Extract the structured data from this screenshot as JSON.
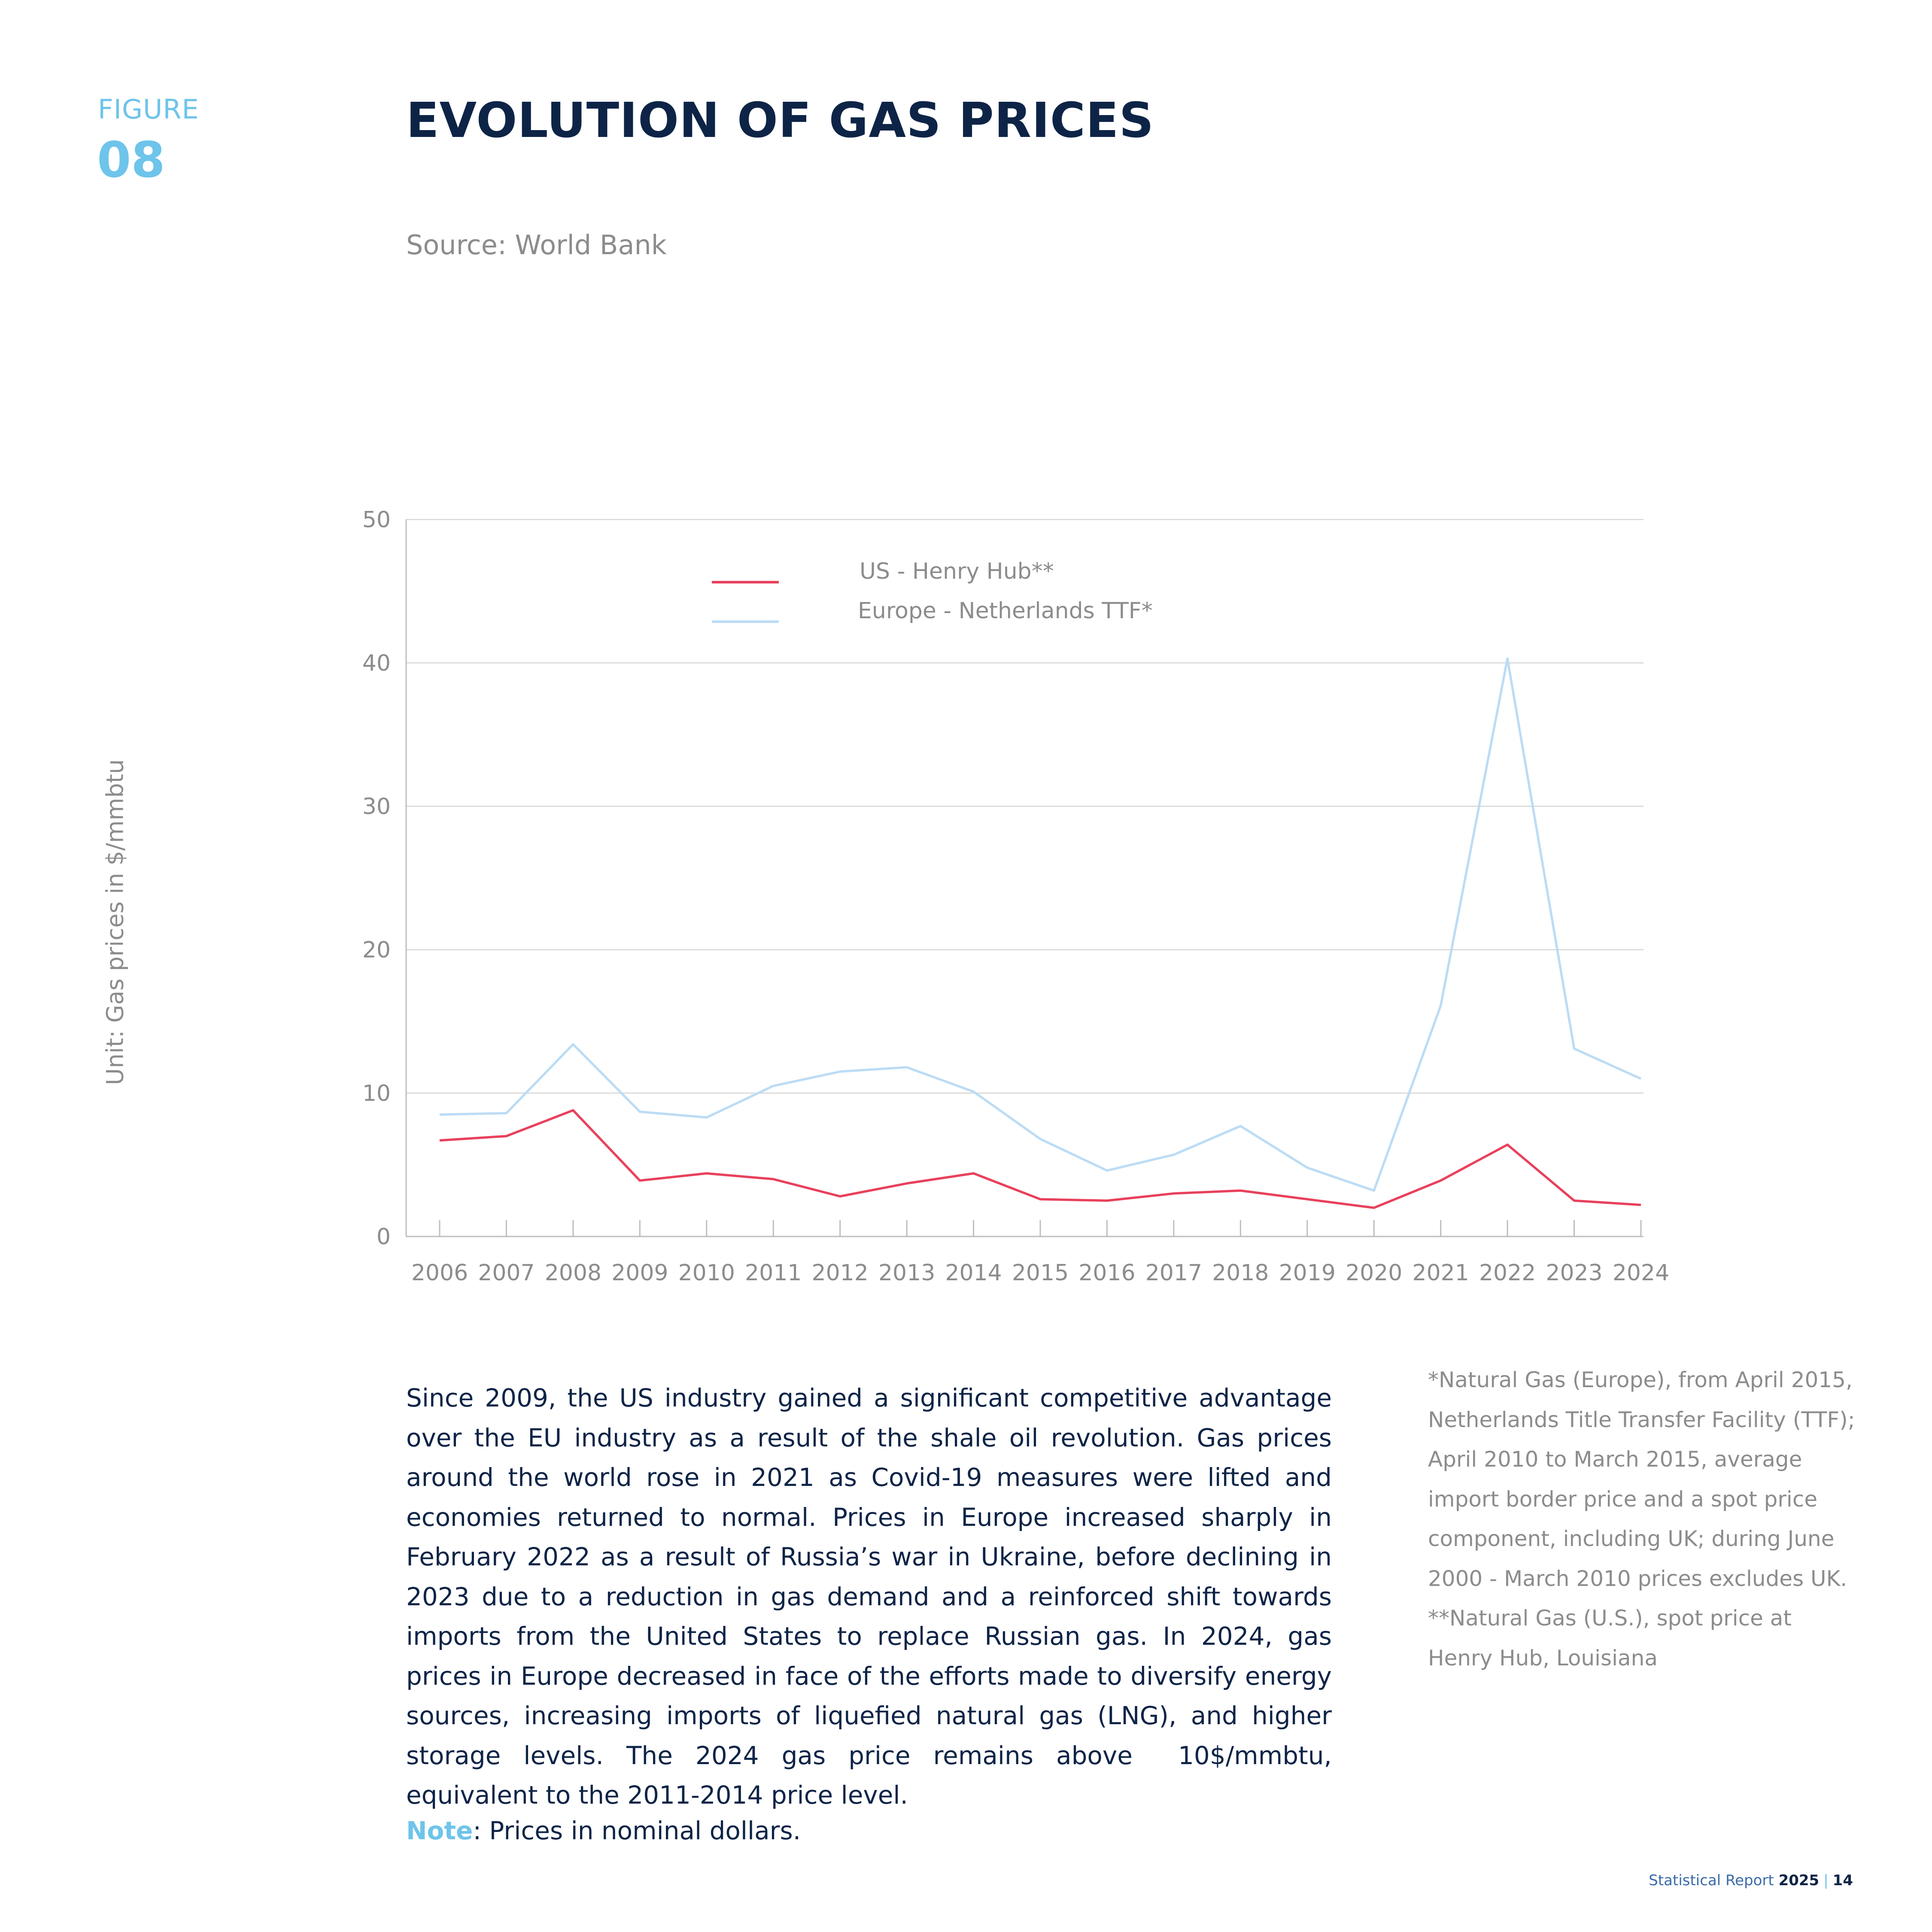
{
  "figure": {
    "label": "FIGURE",
    "number": "08",
    "title": "EVOLUTION OF GAS PRICES",
    "source": "Source: World Bank",
    "unit_label": "Unit: Gas prices in $/mmbtu"
  },
  "chart_data": {
    "type": "line",
    "title": "",
    "xlabel": "",
    "ylabel": "Unit: Gas prices in $/mmbtu",
    "x": [
      "2006",
      "2007",
      "2008",
      "2009",
      "2010",
      "2011",
      "2012",
      "2013",
      "2014",
      "2015",
      "2016",
      "2017",
      "2018",
      "2019",
      "2020",
      "2021",
      "2022",
      "2023",
      "2024"
    ],
    "ylim": [
      0,
      50
    ],
    "yticks": [
      0,
      10,
      20,
      30,
      40,
      50
    ],
    "grid": true,
    "legend_position": "top-left",
    "series": [
      {
        "name": "US - Henry Hub**",
        "color": "#e8415c",
        "values": [
          6.7,
          7.0,
          8.8,
          3.9,
          4.4,
          4.0,
          2.8,
          3.7,
          4.4,
          2.6,
          2.5,
          3.0,
          3.2,
          2.6,
          2.0,
          3.9,
          6.4,
          2.5,
          2.2
        ]
      },
      {
        "name": "Europe - Netherlands TTF*",
        "color": "#bcdcf5",
        "values": [
          8.5,
          8.6,
          13.4,
          8.7,
          8.3,
          10.5,
          11.5,
          11.8,
          10.1,
          6.8,
          4.6,
          5.7,
          7.7,
          4.8,
          3.2,
          16.1,
          40.3,
          13.1,
          11.0
        ]
      }
    ]
  },
  "body_text": "Since 2009, the US industry gained a significant competitive advantage over the EU industry as a result of the shale oil revolution. Gas prices around the world rose in 2021 as Covid-19 measures were lifted and economies returned to normal. Prices in Europe increased sharply in February 2022 as a result of Russia’s war in Ukraine, before declining in 2023 due to a reduction in gas demand and a reinforced shift towards imports from the United States to replace Russian gas. In 2024, gas prices in Europe decreased in face of the efforts made to diversify energy sources, increasing imports of liquefied natural gas (LNG), and higher storage levels. The 2024 gas price remains above  10$/mmbtu, equivalent to the 2011-2014 price level.",
  "note": {
    "label": "Note",
    "text": ": Prices in nominal dollars."
  },
  "footnotes": [
    "*Natural Gas (Europe), from April 2015, Netherlands Title Transfer Facility (TTF); April 2010 to March 2015, average import border price and a spot price component, including UK; during June 2000 - March 2010 prices excludes UK.",
    "**Natural Gas (U.S.), spot price at Henry Hub, Louisiana"
  ],
  "footer": {
    "report": "Statistical Report",
    "year": "2025",
    "separator": "|",
    "page": "14"
  }
}
